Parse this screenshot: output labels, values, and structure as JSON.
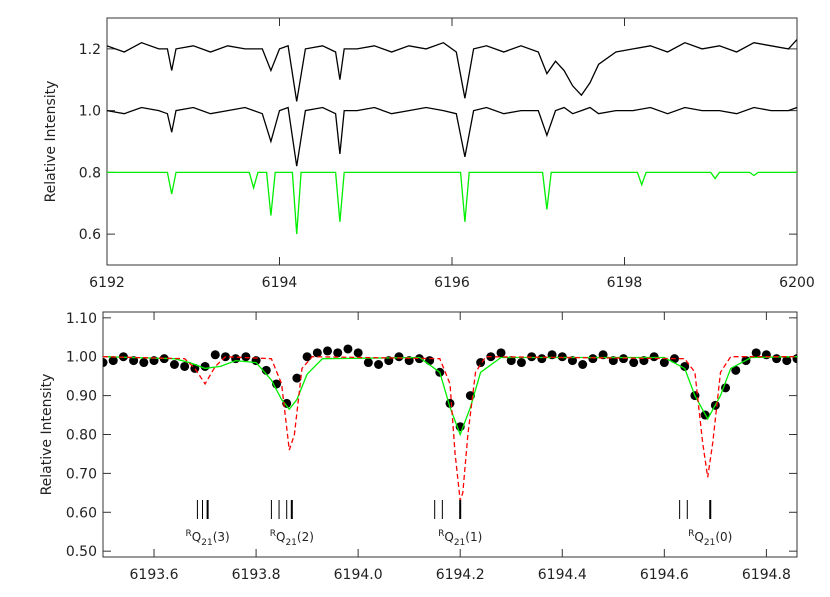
{
  "chart_data": [
    {
      "type": "line",
      "ylabel": "Relative Intensity",
      "xlim": [
        6192,
        6200
      ],
      "ylim": [
        0.5,
        1.3
      ],
      "xticks": [
        6192,
        6194,
        6196,
        6198,
        6200
      ],
      "yticks": [
        0.6,
        0.8,
        {
          "value": 1,
          "label": "1.0"
        },
        1.2
      ],
      "series": [
        {
          "color": "#000000",
          "style": "solid",
          "x": [
            6192.0,
            6192.2,
            6192.4,
            6192.6,
            6192.7,
            6192.75,
            6192.8,
            6193.0,
            6193.2,
            6193.4,
            6193.6,
            6193.8,
            6193.9,
            6194.0,
            6194.1,
            6194.2,
            6194.3,
            6194.5,
            6194.65,
            6194.7,
            6194.75,
            6194.9,
            6195.1,
            6195.3,
            6195.5,
            6195.7,
            6195.9,
            6196.05,
            6196.15,
            6196.25,
            6196.4,
            6196.6,
            6196.8,
            6197.0,
            6197.1,
            6197.2,
            6197.3,
            6197.4,
            6197.5,
            6197.6,
            6197.7,
            6197.9,
            6198.1,
            6198.3,
            6198.5,
            6198.7,
            6198.9,
            6199.1,
            6199.3,
            6199.5,
            6199.7,
            6199.9,
            6200.0
          ],
          "values": [
            1.21,
            1.19,
            1.22,
            1.2,
            1.2,
            1.13,
            1.2,
            1.21,
            1.19,
            1.21,
            1.2,
            1.2,
            1.13,
            1.2,
            1.21,
            1.03,
            1.2,
            1.21,
            1.19,
            1.1,
            1.2,
            1.2,
            1.21,
            1.19,
            1.21,
            1.2,
            1.22,
            1.19,
            1.04,
            1.2,
            1.21,
            1.19,
            1.21,
            1.19,
            1.12,
            1.16,
            1.13,
            1.08,
            1.05,
            1.09,
            1.15,
            1.19,
            1.2,
            1.21,
            1.19,
            1.22,
            1.2,
            1.21,
            1.19,
            1.22,
            1.21,
            1.2,
            1.23
          ]
        },
        {
          "color": "#000000",
          "style": "solid",
          "x": [
            6192.0,
            6192.2,
            6192.4,
            6192.6,
            6192.7,
            6192.75,
            6192.8,
            6193.0,
            6193.2,
            6193.4,
            6193.6,
            6193.8,
            6193.9,
            6194.0,
            6194.1,
            6194.2,
            6194.3,
            6194.5,
            6194.65,
            6194.7,
            6194.75,
            6194.9,
            6195.1,
            6195.3,
            6195.5,
            6195.7,
            6195.9,
            6196.05,
            6196.15,
            6196.25,
            6196.4,
            6196.6,
            6196.8,
            6197.0,
            6197.1,
            6197.2,
            6197.3,
            6197.4,
            6197.5,
            6197.6,
            6197.7,
            6197.9,
            6198.1,
            6198.3,
            6198.5,
            6198.7,
            6198.9,
            6199.1,
            6199.3,
            6199.5,
            6199.7,
            6199.9,
            6200.0
          ],
          "values": [
            1.0,
            0.99,
            1.01,
            1.0,
            0.99,
            0.93,
            1.0,
            1.01,
            0.99,
            1.0,
            1.01,
            0.99,
            0.9,
            1.0,
            1.01,
            0.82,
            1.0,
            1.01,
            0.99,
            0.86,
            1.0,
            1.0,
            1.01,
            0.99,
            1.0,
            1.01,
            1.0,
            0.99,
            0.85,
            1.0,
            1.01,
            0.99,
            1.0,
            1.0,
            0.92,
            1.0,
            1.01,
            0.99,
            1.0,
            1.01,
            0.99,
            1.0,
            1.0,
            1.01,
            0.99,
            1.01,
            1.0,
            1.0,
            0.99,
            1.01,
            1.0,
            1.0,
            1.01
          ]
        },
        {
          "color": "#00ee00",
          "style": "solid",
          "x": [
            6192,
            6192.7,
            6192.75,
            6192.8,
            6193.65,
            6193.7,
            6193.75,
            6193.85,
            6193.9,
            6193.95,
            6194.15,
            6194.2,
            6194.25,
            6194.65,
            6194.7,
            6194.75,
            6196.1,
            6196.15,
            6196.2,
            6197.05,
            6197.1,
            6197.15,
            6198.15,
            6198.2,
            6198.25,
            6199.0,
            6199.05,
            6199.1,
            6199.45,
            6199.5,
            6199.55,
            6200
          ],
          "values": [
            0.8,
            0.8,
            0.73,
            0.8,
            0.8,
            0.75,
            0.8,
            0.8,
            0.66,
            0.8,
            0.8,
            0.6,
            0.8,
            0.8,
            0.64,
            0.8,
            0.8,
            0.64,
            0.8,
            0.8,
            0.68,
            0.8,
            0.8,
            0.76,
            0.8,
            0.8,
            0.78,
            0.8,
            0.8,
            0.79,
            0.8,
            0.8
          ]
        }
      ]
    },
    {
      "type": "line",
      "ylabel": "Relative Intensity",
      "xlim": [
        6193.5,
        6194.86
      ],
      "ylim": [
        0.485,
        1.115
      ],
      "xticks": [
        6193.6,
        6193.8,
        {
          "value": 6194,
          "label": "6194.0"
        },
        6194.2,
        6194.4,
        6194.6,
        6194.8
      ],
      "yticks": [
        {
          "value": 0.5,
          "label": "0.50"
        },
        {
          "value": 0.6,
          "label": "0.60"
        },
        {
          "value": 0.7,
          "label": "0.70"
        },
        {
          "value": 0.8,
          "label": "0.80"
        },
        {
          "value": 0.9,
          "label": "0.90"
        },
        {
          "value": 1,
          "label": "1.00"
        },
        {
          "value": 1.1,
          "label": "1.10"
        }
      ],
      "series": [
        {
          "color": "#000000",
          "style": "points",
          "x": [
            6193.5,
            6193.52,
            6193.54,
            6193.56,
            6193.58,
            6193.6,
            6193.62,
            6193.64,
            6193.66,
            6193.68,
            6193.7,
            6193.72,
            6193.74,
            6193.76,
            6193.78,
            6193.8,
            6193.82,
            6193.84,
            6193.86,
            6193.88,
            6193.9,
            6193.92,
            6193.94,
            6193.96,
            6193.98,
            6194.0,
            6194.02,
            6194.04,
            6194.06,
            6194.08,
            6194.1,
            6194.12,
            6194.14,
            6194.16,
            6194.18,
            6194.2,
            6194.22,
            6194.24,
            6194.26,
            6194.28,
            6194.3,
            6194.32,
            6194.34,
            6194.36,
            6194.38,
            6194.4,
            6194.42,
            6194.44,
            6194.46,
            6194.48,
            6194.5,
            6194.52,
            6194.54,
            6194.56,
            6194.58,
            6194.6,
            6194.62,
            6194.64,
            6194.66,
            6194.68,
            6194.7,
            6194.72,
            6194.74,
            6194.76,
            6194.78,
            6194.8,
            6194.82,
            6194.84,
            6194.86
          ],
          "values": [
            0.985,
            0.99,
            1.0,
            0.99,
            0.985,
            0.99,
            0.995,
            0.98,
            0.975,
            0.97,
            0.975,
            1.005,
            1.0,
            0.995,
            1.0,
            0.99,
            0.965,
            0.93,
            0.88,
            0.945,
            1.0,
            1.01,
            1.015,
            1.01,
            1.02,
            1.01,
            0.985,
            0.98,
            0.99,
            1.0,
            0.99,
            0.995,
            0.99,
            0.96,
            0.88,
            0.82,
            0.9,
            0.985,
            1.0,
            1.01,
            0.99,
            0.985,
            1.0,
            0.995,
            1.005,
            1.0,
            0.99,
            0.98,
            0.995,
            1.005,
            0.99,
            0.995,
            0.985,
            0.99,
            1.0,
            0.985,
            0.995,
            0.975,
            0.9,
            0.85,
            0.875,
            0.92,
            0.965,
            0.99,
            1.01,
            1.005,
            0.995,
            0.99,
            0.995
          ]
        },
        {
          "color": "#00ee00",
          "style": "solid",
          "x": [
            6193.5,
            6193.64,
            6193.67,
            6193.7,
            6193.73,
            6193.76,
            6193.8,
            6193.83,
            6193.85,
            6193.865,
            6193.88,
            6193.9,
            6193.93,
            6194.12,
            6194.16,
            6194.18,
            6194.2,
            6194.22,
            6194.24,
            6194.28,
            6194.6,
            6194.64,
            6194.66,
            6194.685,
            6194.71,
            6194.73,
            6194.77,
            6194.86
          ],
          "values": [
            1.0,
            0.995,
            0.985,
            0.97,
            0.975,
            0.99,
            0.985,
            0.94,
            0.89,
            0.865,
            0.89,
            0.955,
            0.995,
            0.998,
            0.96,
            0.87,
            0.8,
            0.87,
            0.96,
            0.998,
            0.998,
            0.97,
            0.9,
            0.84,
            0.9,
            0.97,
            0.998,
            1.0
          ]
        },
        {
          "color": "#ff0000",
          "style": "dashed",
          "x": [
            6193.5,
            6193.66,
            6193.68,
            6193.7,
            6193.72,
            6193.74,
            6193.83,
            6193.85,
            6193.865,
            6193.875,
            6193.89,
            6193.91,
            6194.16,
            6194.18,
            6194.19,
            6194.2,
            6194.205,
            6194.215,
            6194.23,
            6194.25,
            6194.64,
            6194.66,
            6194.675,
            6194.685,
            6194.695,
            6194.71,
            6194.73,
            6194.86
          ],
          "values": [
            1.0,
            0.995,
            0.97,
            0.93,
            0.975,
            1.0,
            0.995,
            0.93,
            0.76,
            0.8,
            0.97,
            1.0,
            0.995,
            0.93,
            0.75,
            0.63,
            0.65,
            0.8,
            0.96,
            1.0,
            0.995,
            0.96,
            0.78,
            0.69,
            0.78,
            0.96,
            1.0,
            1.0
          ]
        }
      ],
      "line_groups": [
        {
          "lines": [
            6193.685,
            6193.695,
            6193.705
          ],
          "label": {
            "sup": "R",
            "main": "Q",
            "sub": "21",
            "tail": "(3)"
          }
        },
        {
          "lines": [
            6193.83,
            6193.845,
            6193.86,
            6193.87
          ],
          "label": {
            "sup": "R",
            "main": "Q",
            "sub": "21",
            "tail": "(2)"
          }
        },
        {
          "lines": [
            6194.15,
            6194.165,
            6194.2
          ],
          "label": {
            "sup": "R",
            "main": "Q",
            "sub": "21",
            "tail": "(1)"
          }
        },
        {
          "lines": [
            6194.63,
            6194.645,
            6194.69
          ],
          "label": {
            "sup": "R",
            "main": "Q",
            "sub": "21",
            "tail": "(0)"
          }
        }
      ]
    }
  ]
}
